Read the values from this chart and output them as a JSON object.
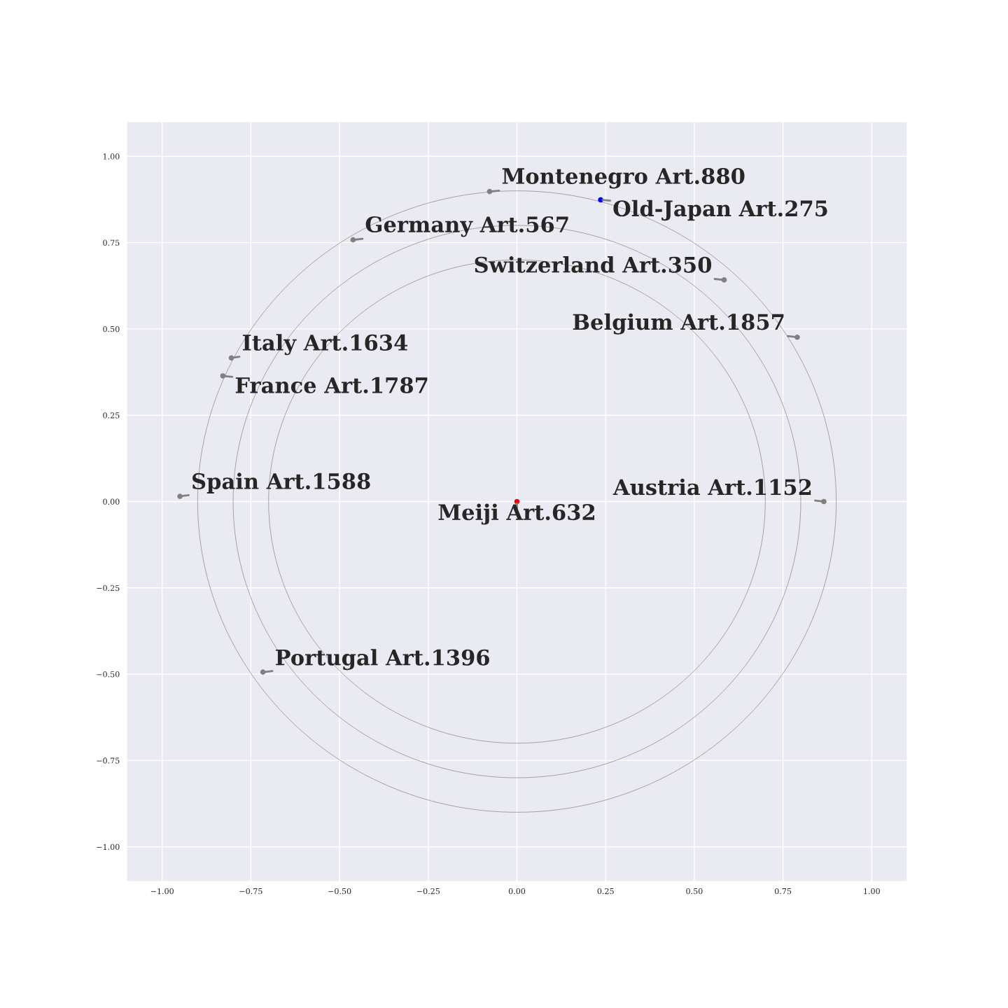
{
  "chart_data": {
    "type": "scatter",
    "series": [
      {
        "type": "scatter",
        "x": [
          -0.077,
          0.236,
          -0.462,
          0.584,
          0.79,
          -0.805,
          -0.829,
          -0.95,
          0.865,
          0,
          -0.716
        ],
        "values": [
          0.898,
          0.874,
          0.758,
          0.642,
          0.476,
          0.416,
          0.364,
          0.015,
          0,
          0,
          -0.494
        ],
        "colors": [
          "#808080",
          "#0000ff",
          "#808080",
          "#808080",
          "#808080",
          "#808080",
          "#808080",
          "#808080",
          "#808080",
          "#ff0000",
          "#808080"
        ]
      }
    ],
    "annotations": [
      {
        "text": "Montenegro Art.880",
        "x": -0.077,
        "y": 0.898
      },
      {
        "text": "Old-Japan Art.275",
        "x": 0.236,
        "y": 0.874
      },
      {
        "text": "Germany Art.567",
        "x": -0.462,
        "y": 0.758
      },
      {
        "text": "Switzerland Art.350",
        "x": 0.584,
        "y": 0.642
      },
      {
        "text": "Belgium Art.1857",
        "x": 0.79,
        "y": 0.476
      },
      {
        "text": "Italy Art.1634",
        "x": -0.805,
        "y": 0.416
      },
      {
        "text": "France Art.1787",
        "x": -0.829,
        "y": 0.364
      },
      {
        "text": "Spain Art.1588",
        "x": -0.95,
        "y": 0.015
      },
      {
        "text": "Austria Art.1152",
        "x": 0.865,
        "y": 0
      },
      {
        "text": "Meiji Art.632",
        "x": 0,
        "y": 0
      },
      {
        "text": "Portugal Art.1396",
        "x": -0.716,
        "y": -0.494
      }
    ],
    "xlim": [
      -1.1,
      1.1
    ],
    "ylim": [
      -1.1,
      1.1
    ],
    "xticks": [
      {
        "value": -1,
        "label": "−1.00"
      },
      {
        "value": -0.75,
        "label": "−0.75"
      },
      {
        "value": -0.5,
        "label": "−0.50"
      },
      {
        "value": -0.25,
        "label": "−0.25"
      },
      {
        "value": 0,
        "label": "0.00"
      },
      {
        "value": 0.25,
        "label": "0.25"
      },
      {
        "value": 0.5,
        "label": "0.50"
      },
      {
        "value": 0.75,
        "label": "0.75"
      },
      {
        "value": 1,
        "label": "1.00"
      }
    ],
    "yticks": [
      {
        "value": -1,
        "label": "−1.00"
      },
      {
        "value": -0.75,
        "label": "−0.75"
      },
      {
        "value": -0.5,
        "label": "−0.50"
      },
      {
        "value": -0.25,
        "label": "−0.25"
      },
      {
        "value": 0,
        "label": "0.00"
      },
      {
        "value": 0.25,
        "label": "0.25"
      },
      {
        "value": 0.5,
        "label": "0.50"
      },
      {
        "value": 0.75,
        "label": "0.75"
      },
      {
        "value": 1,
        "label": "1.00"
      }
    ],
    "grid": true
  }
}
